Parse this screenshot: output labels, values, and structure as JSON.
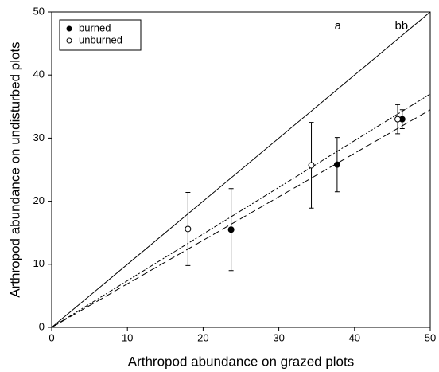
{
  "chart_data": {
    "type": "scatter",
    "x_label": "Arthropod abundance on grazed plots",
    "y_label": "Arthropod abundance on undisturbed plots",
    "xlim": [
      0,
      50
    ],
    "ylim": [
      0,
      50
    ],
    "xticks": [
      0,
      10,
      20,
      30,
      40,
      50
    ],
    "yticks": [
      0,
      10,
      20,
      30,
      40,
      50
    ],
    "legend_position": "upper-left",
    "series": [
      {
        "name": "burned",
        "color": "#000000",
        "marker": "filled",
        "x": [
          23.7,
          37.7,
          46.3
        ],
        "values": [
          15.5,
          25.8,
          33.0
        ],
        "errors": [
          6.5,
          4.3,
          1.5
        ]
      },
      {
        "name": "unburned",
        "color": "#000000",
        "marker": "open",
        "x": [
          18.0,
          34.3,
          45.7
        ],
        "values": [
          15.6,
          25.7,
          33.0
        ],
        "errors": [
          5.8,
          6.8,
          2.3
        ]
      }
    ],
    "lines": [
      {
        "x": [
          0,
          50
        ],
        "y": [
          0,
          50
        ],
        "style": "solid"
      },
      {
        "x": [
          0,
          50
        ],
        "y": [
          0,
          34.5
        ],
        "style": "dashed"
      },
      {
        "x": [
          0,
          50
        ],
        "y": [
          0,
          37.0
        ],
        "style": "short-dashed"
      }
    ],
    "annotations": [
      {
        "text": "a",
        "x": 37.8,
        "y": 47.7
      },
      {
        "text": "bb",
        "x": 46.2,
        "y": 47.7
      }
    ]
  }
}
